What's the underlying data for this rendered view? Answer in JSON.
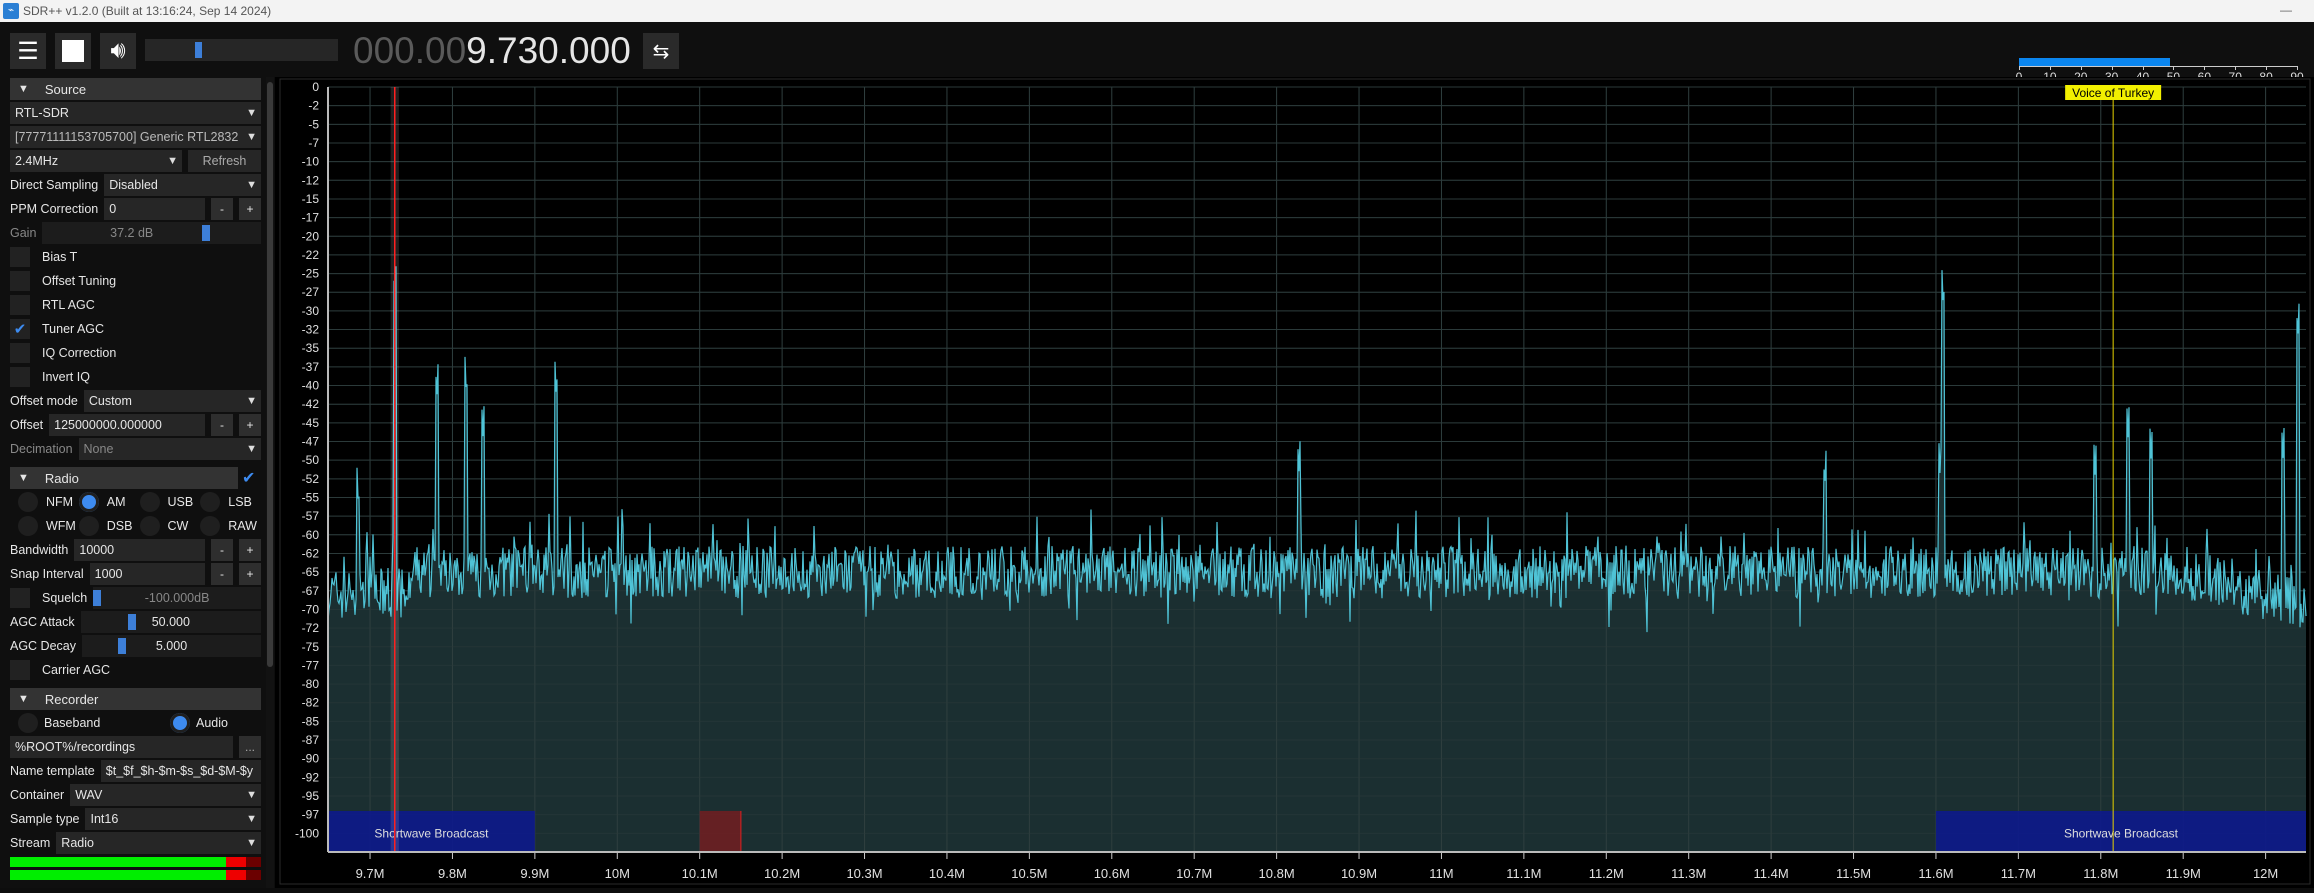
{
  "window": {
    "title": "SDR++ v1.2.0 (Built at 13:16:24, Sep 14 2024)",
    "minimize": "—"
  },
  "toolbar": {
    "menu_icon": "hamburger-icon",
    "stop_icon": "stop-icon",
    "volume_icon": "speaker-icon",
    "volume_level": 0.27,
    "freq_dim": "000.00",
    "freq_main": "9.730.000",
    "swap_icon": "swap-arrows-icon",
    "snr": {
      "value": 49,
      "ticks": [
        "0",
        "10",
        "20",
        "30",
        "40",
        "50",
        "60",
        "70",
        "80",
        "90"
      ]
    }
  },
  "source": {
    "header": "Source",
    "device_type": "RTL-SDR",
    "device": "[77771111153705700] Generic RTL2832",
    "sample_rate": "2.4MHz",
    "refresh": "Refresh",
    "direct_sampling_label": "Direct Sampling",
    "direct_sampling": "Disabled",
    "ppm_label": "PPM Correction",
    "ppm": "0",
    "minus": "-",
    "plus": "+",
    "gain_label": "Gain",
    "gain": "37.2 dB",
    "gain_level": 0.73,
    "checks": [
      {
        "label": "Bias T",
        "checked": false
      },
      {
        "label": "Offset Tuning",
        "checked": false
      },
      {
        "label": "RTL AGC",
        "checked": false
      },
      {
        "label": "Tuner AGC",
        "checked": true
      },
      {
        "label": "IQ Correction",
        "checked": false
      },
      {
        "label": "Invert IQ",
        "checked": false
      }
    ],
    "check_mark": "✔",
    "offset_mode_label": "Offset mode",
    "offset_mode": "Custom",
    "offset_label": "Offset",
    "offset": "125000000.000000",
    "decimation_label": "Decimation",
    "decimation": "None"
  },
  "radio": {
    "header": "Radio",
    "modes": [
      "NFM",
      "AM",
      "USB",
      "LSB",
      "WFM",
      "DSB",
      "CW",
      "RAW"
    ],
    "selected": "AM",
    "bandwidth_label": "Bandwidth",
    "bandwidth": "10000",
    "snap_label": "Snap Interval",
    "snap": "1000",
    "squelch_label": "Squelch",
    "squelch": "-100.000dB",
    "agc_attack_label": "AGC Attack",
    "agc_attack": "50.000",
    "agc_decay_label": "AGC Decay",
    "agc_decay": "5.000",
    "carrier_agc_label": "Carrier AGC"
  },
  "recorder": {
    "header": "Recorder",
    "baseband": "Baseband",
    "audio": "Audio",
    "selected": "Audio",
    "path": "%ROOT%/recordings",
    "browse": "...",
    "name_template_label": "Name template",
    "name_template": "$t_$f_$h-$m-$s_$d-$M-$y",
    "container_label": "Container",
    "container": "WAV",
    "sample_type_label": "Sample type",
    "sample_type": "Int16",
    "stream_label": "Stream",
    "stream": "Radio",
    "meter_levels": [
      0.86,
      0.86
    ]
  },
  "colors": {
    "trace": "#4fc3d6",
    "fill": "#1b2f31",
    "vfo": "#ff2020",
    "bookmark": "#e6d200",
    "bandplan": "#0d1a8c",
    "bandplan_red": "#6e1f22"
  },
  "chart_data": {
    "type": "line",
    "xlim": [
      9.649,
      12.049
    ],
    "ylim": [
      -102.5,
      0
    ],
    "x_ticks": [
      "9.7M",
      "9.8M",
      "9.9M",
      "10M",
      "10.1M",
      "10.2M",
      "10.3M",
      "10.4M",
      "10.5M",
      "10.6M",
      "10.7M",
      "10.8M",
      "10.9M",
      "11M",
      "11.1M",
      "11.2M",
      "11.3M",
      "11.4M",
      "11.5M",
      "11.6M",
      "11.7M",
      "11.8M",
      "11.9M",
      "12M"
    ],
    "y_ticks": [
      "0",
      "-2",
      "-5",
      "-7",
      "-10",
      "-12",
      "-15",
      "-17",
      "-20",
      "-22",
      "-25",
      "-27",
      "-30",
      "-32",
      "-35",
      "-37",
      "-40",
      "-42",
      "-45",
      "-47",
      "-50",
      "-52",
      "-55",
      "-57",
      "-60",
      "-62",
      "-65",
      "-67",
      "-70",
      "-72",
      "-75",
      "-77",
      "-80",
      "-82",
      "-85",
      "-87",
      "-90",
      "-92",
      "-95",
      "-97",
      "-100"
    ],
    "grid": true,
    "noise_floor_db": -65,
    "peaks": [
      {
        "f": 9.686,
        "db": -57
      },
      {
        "f": 9.73,
        "db": -29
      },
      {
        "f": 9.781,
        "db": -42
      },
      {
        "f": 9.817,
        "db": -42
      },
      {
        "f": 9.837,
        "db": -47
      },
      {
        "f": 9.926,
        "db": -42
      },
      {
        "f": 10.827,
        "db": -52
      },
      {
        "f": 11.465,
        "db": -54
      },
      {
        "f": 11.605,
        "db": -52
      },
      {
        "f": 11.609,
        "db": -30
      },
      {
        "f": 11.793,
        "db": -52
      },
      {
        "f": 11.833,
        "db": -47
      },
      {
        "f": 11.861,
        "db": -50
      },
      {
        "f": 12.021,
        "db": -50
      },
      {
        "f": 12.039,
        "db": -34
      }
    ],
    "vfo": {
      "f": 9.73,
      "bandwidth_khz": 10
    },
    "bookmark": {
      "label": "Voice of Turkey",
      "f": 11.815
    },
    "bandplan": [
      {
        "label": "Shortwave Broadcast",
        "start": 9.4,
        "end": 9.9
      },
      {
        "label": "",
        "start": 10.1,
        "end": 10.15,
        "color": "red"
      },
      {
        "label": "Shortwave Broadcast",
        "start": 11.6,
        "end": 12.1
      }
    ]
  }
}
